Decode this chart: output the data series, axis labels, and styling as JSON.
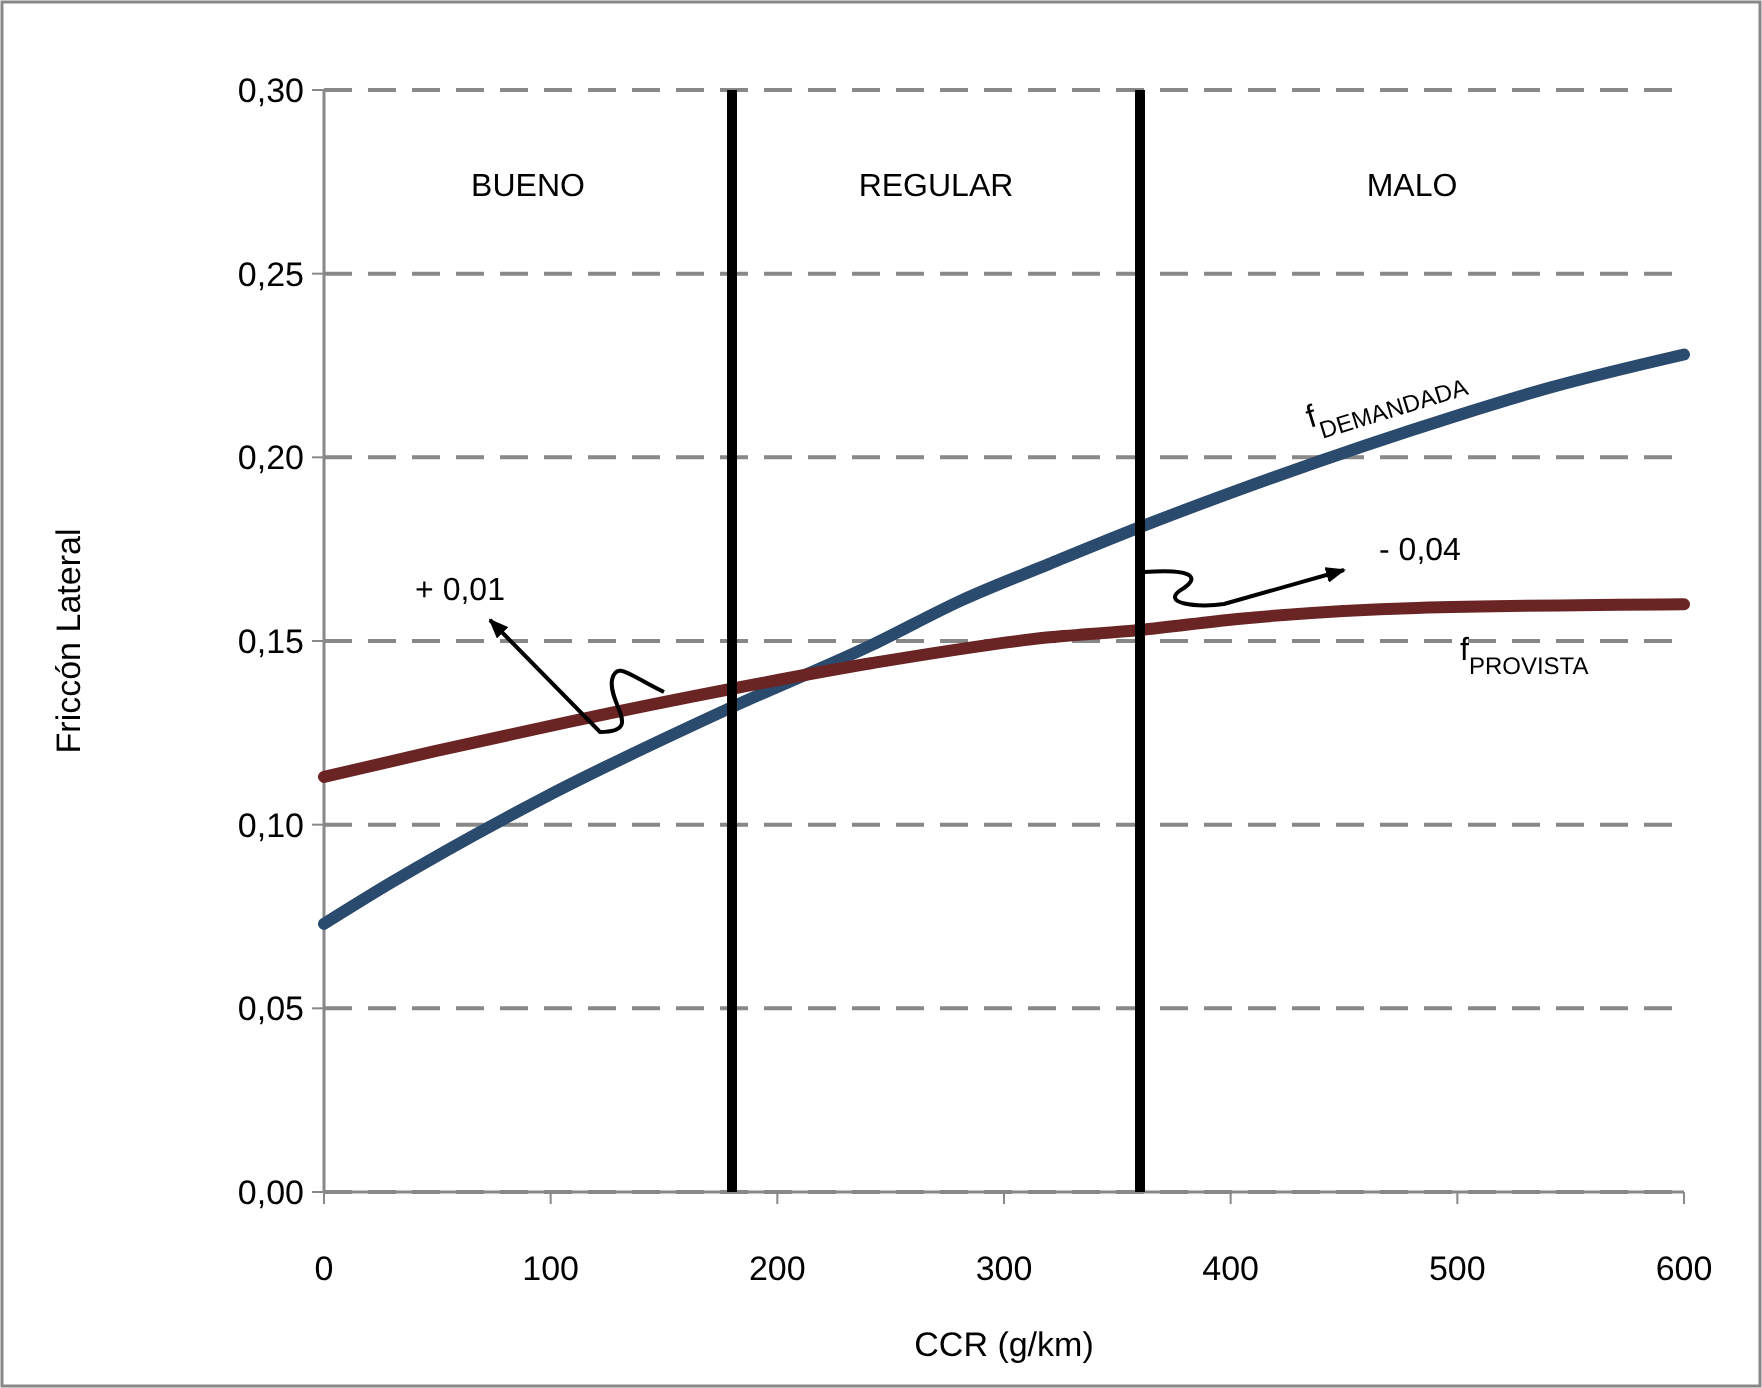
{
  "chart_data": {
    "type": "line",
    "xlabel": "CCR (g/km)",
    "ylabel": "Friccón Lateral",
    "xlim": [
      0,
      600
    ],
    "xticks": [
      0,
      100,
      200,
      300,
      400,
      500,
      600
    ],
    "ylim": [
      0,
      0.3
    ],
    "yticks": [
      {
        "value": 0,
        "label": "0,00"
      },
      {
        "value": 0.05,
        "label": "0,05"
      },
      {
        "value": 0.1,
        "label": "0,10"
      },
      {
        "value": 0.15,
        "label": "0,15"
      },
      {
        "value": 0.2,
        "label": "0,20"
      },
      {
        "value": 0.25,
        "label": "0,25"
      },
      {
        "value": 0.3,
        "label": "0,30"
      }
    ],
    "grid": "y",
    "line_style": "solid",
    "marker": "none",
    "series": [
      {
        "name": "f$_{DEMANDADA}$",
        "color": "#2a4a6e",
        "x": [
          0,
          29,
          96,
          180,
          242,
          281,
          320,
          360,
          403,
          498,
          541,
          600
        ],
        "values": [
          0.073,
          0.084,
          0.107,
          0.132,
          0.149,
          0.161,
          0.171,
          0.181,
          0.191,
          0.211,
          0.219,
          0.228
        ]
      },
      {
        "name": "f$_{PROVISTA}$",
        "color": "#6b2424",
        "x": [
          0,
          49,
          108,
          180,
          242,
          320,
          360,
          403,
          482,
          600
        ],
        "values": [
          0.113,
          0.12,
          0.128,
          0.137,
          0.144,
          0.151,
          0.153,
          0.156,
          0.159,
          0.16
        ]
      }
    ],
    "ref_lines": [
      {
        "axis": "x",
        "value": 180,
        "color": "#000000"
      },
      {
        "axis": "x",
        "value": 360,
        "color": "#000000"
      }
    ],
    "annotations": [
      "BUENO",
      "REGULAR",
      "MALO",
      "+ 0,01",
      "- 0,04"
    ]
  }
}
